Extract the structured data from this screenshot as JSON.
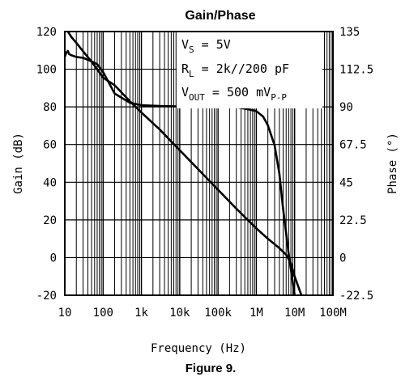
{
  "chart_data": {
    "type": "line",
    "title": "Gain/Phase",
    "caption": "Figure 9.",
    "xlabel": "Frequency (Hz)",
    "ylabel_left": "Gain (dB)",
    "ylabel_right": "Phase (°)",
    "x_scale": "log",
    "xlim": [
      10,
      100000000
    ],
    "ylim_left": [
      -20,
      120
    ],
    "ylim_right": [
      -22.5,
      135
    ],
    "x_ticks": [
      {
        "value": 10,
        "label": "10"
      },
      {
        "value": 100,
        "label": "100"
      },
      {
        "value": 1000,
        "label": "1k"
      },
      {
        "value": 10000,
        "label": "10k"
      },
      {
        "value": 100000,
        "label": "100k"
      },
      {
        "value": 1000000,
        "label": "1M"
      },
      {
        "value": 10000000,
        "label": "10M"
      },
      {
        "value": 100000000,
        "label": "100M"
      }
    ],
    "y_ticks_left": [
      {
        "value": -20,
        "label": "-20"
      },
      {
        "value": 0,
        "label": "0"
      },
      {
        "value": 20,
        "label": "20"
      },
      {
        "value": 40,
        "label": "40"
      },
      {
        "value": 60,
        "label": "60"
      },
      {
        "value": 80,
        "label": "80"
      },
      {
        "value": 100,
        "label": "100"
      },
      {
        "value": 120,
        "label": "120"
      }
    ],
    "y_ticks_right": [
      {
        "value": -22.5,
        "label": "-22.5"
      },
      {
        "value": 0,
        "label": "0"
      },
      {
        "value": 22.5,
        "label": "22.5"
      },
      {
        "value": 45,
        "label": "45"
      },
      {
        "value": 67.5,
        "label": "67.5"
      },
      {
        "value": 90,
        "label": "90"
      },
      {
        "value": 112.5,
        "label": "112.5"
      },
      {
        "value": 135,
        "label": "135"
      }
    ],
    "grid": true,
    "annotation": {
      "lines": [
        {
          "main": "V",
          "sub": "S",
          "rest": " = 5V",
          "rest_sub": ""
        },
        {
          "main": "R",
          "sub": "L",
          "rest": " = 2k//200 pF",
          "rest_sub": ""
        },
        {
          "main": "V",
          "sub": "OUT",
          "rest": " = 500 mV",
          "rest_sub": "P-P"
        }
      ]
    },
    "series": [
      {
        "axis": "left",
        "x": [
          12,
          15,
          20,
          30,
          50,
          70,
          100,
          200,
          500,
          1000,
          3000,
          10000,
          30000,
          100000,
          300000,
          1000000,
          2000000,
          4000000,
          6000000,
          8000000,
          10000000,
          15000000
        ],
        "y": [
          120,
          117,
          114,
          109.5,
          104,
          100,
          95.5,
          91.5,
          83,
          77,
          68,
          57,
          47,
          36,
          26,
          15.5,
          10,
          5,
          1.5,
          -3,
          -10,
          -20
        ]
      },
      {
        "axis": "right",
        "x": [
          10,
          11,
          12,
          13,
          15,
          20,
          30,
          50,
          70,
          100,
          200,
          500,
          1000,
          3000,
          10000,
          30000,
          100000,
          300000,
          600000,
          1000000,
          1500000,
          2000000,
          3000000,
          4000000,
          5000000,
          7000000,
          10000000
        ],
        "y": [
          120,
          122.5,
          123.4,
          121.5,
          120.8,
          119.8,
          119.3,
          117.2,
          115.5,
          110.8,
          98,
          92.5,
          91,
          90.5,
          90.3,
          90.3,
          90.3,
          89.9,
          88.6,
          87.5,
          84.2,
          79,
          67,
          50,
          29,
          2,
          -22.5
        ]
      }
    ]
  }
}
